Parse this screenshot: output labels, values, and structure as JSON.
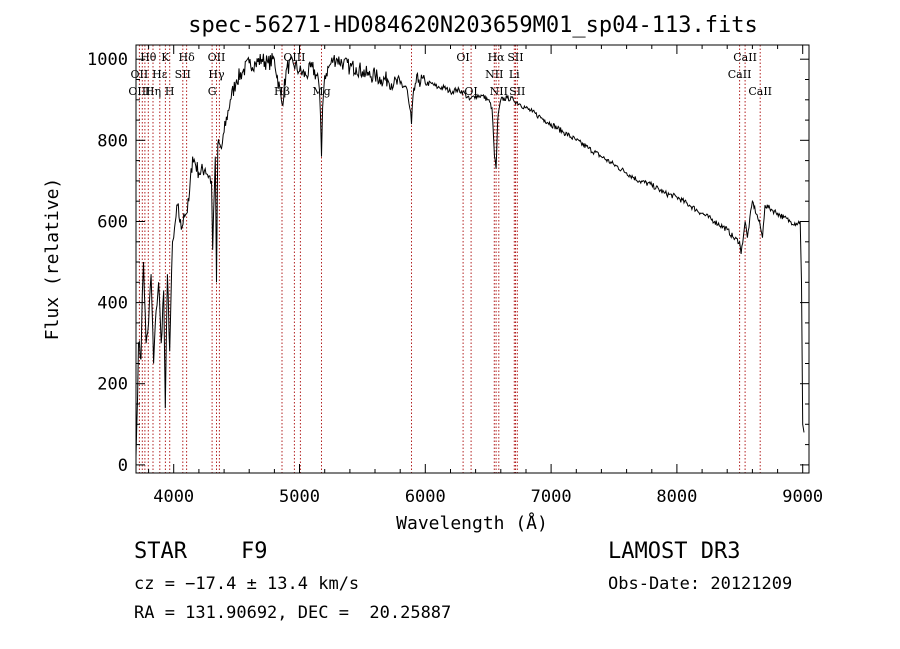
{
  "chart_data": {
    "type": "line",
    "title": "spec-56271-HD084620N203659M01_sp04-113.fits",
    "xlabel": "Wavelength (Å)",
    "ylabel": "Flux (relative)",
    "xlim": [
      3700,
      9050
    ],
    "ylim": [
      -20,
      1035
    ],
    "xticks": [
      4000,
      5000,
      6000,
      7000,
      8000,
      9000
    ],
    "yticks": [
      0,
      200,
      400,
      600,
      800,
      1000
    ],
    "series": [
      {
        "name": "spectrum",
        "x": [
          3700,
          3705,
          3720,
          3740,
          3750,
          3760,
          3780,
          3800,
          3820,
          3840,
          3860,
          3880,
          3900,
          3920,
          3933,
          3950,
          3968,
          3990,
          4000,
          4030,
          4060,
          4080,
          4102,
          4120,
          4150,
          4200,
          4250,
          4300,
          4310,
          4330,
          4340,
          4350,
          4380,
          4400,
          4450,
          4500,
          4550,
          4600,
          4650,
          4700,
          4750,
          4800,
          4861,
          4900,
          4950,
          5000,
          5050,
          5100,
          5150,
          5167,
          5175,
          5183,
          5200,
          5250,
          5270,
          5300,
          5350,
          5400,
          5450,
          5500,
          5550,
          5600,
          5650,
          5700,
          5750,
          5800,
          5850,
          5890,
          5896,
          5920,
          5950,
          6000,
          6050,
          6100,
          6150,
          6200,
          6250,
          6300,
          6350,
          6400,
          6450,
          6500,
          6530,
          6550,
          6563,
          6575,
          6600,
          6650,
          6700,
          6750,
          6800,
          6850,
          6900,
          6950,
          7000,
          7100,
          7200,
          7300,
          7400,
          7500,
          7600,
          7700,
          7800,
          7900,
          8000,
          8100,
          8200,
          8300,
          8400,
          8450,
          8498,
          8510,
          8542,
          8560,
          8600,
          8662,
          8680,
          8700,
          8750,
          8800,
          8850,
          8900,
          8950,
          8980,
          8990,
          9000,
          9010
        ],
        "y": [
          20,
          80,
          300,
          260,
          420,
          500,
          300,
          350,
          470,
          250,
          380,
          450,
          300,
          430,
          140,
          470,
          280,
          550,
          560,
          640,
          580,
          620,
          620,
          650,
          760,
          720,
          730,
          700,
          530,
          760,
          450,
          790,
          780,
          820,
          900,
          950,
          970,
          990,
          990,
          1000,
          990,
          1000,
          890,
          980,
          990,
          970,
          960,
          980,
          950,
          860,
          760,
          880,
          960,
          990,
          1000,
          1000,
          990,
          980,
          980,
          970,
          960,
          960,
          950,
          950,
          940,
          940,
          930,
          840,
          880,
          940,
          950,
          940,
          940,
          930,
          930,
          920,
          925,
          920,
          900,
          910,
          910,
          900,
          880,
          760,
          730,
          850,
          900,
          905,
          900,
          890,
          880,
          870,
          860,
          850,
          840,
          820,
          800,
          780,
          760,
          740,
          720,
          700,
          690,
          670,
          660,
          640,
          620,
          600,
          580,
          560,
          550,
          520,
          600,
          560,
          650,
          590,
          560,
          640,
          630,
          620,
          610,
          600,
          595,
          600,
          450,
          100,
          80
        ]
      }
    ],
    "line_annotations": [
      {
        "label": "Hθ",
        "row": 0,
        "x": 3798
      },
      {
        "label": "K",
        "row": 0,
        "x": 3934
      },
      {
        "label": "Hδ",
        "row": 0,
        "x": 4102
      },
      {
        "label": "OII",
        "row": 0,
        "x": 4340
      },
      {
        "label": "OIII",
        "row": 0,
        "x": 4959
      },
      {
        "label": "OI",
        "row": 0,
        "x": 6300
      },
      {
        "label": "Hα",
        "row": 0,
        "x": 6563
      },
      {
        "label": "SII",
        "row": 0,
        "x": 6717
      },
      {
        "label": "CaII",
        "row": 0,
        "x": 8542
      },
      {
        "label": "OII",
        "row": 1,
        "x": 3727
      },
      {
        "label": "Hε",
        "row": 1,
        "x": 3889
      },
      {
        "label": "SII",
        "row": 1,
        "x": 4072
      },
      {
        "label": "Hγ",
        "row": 1,
        "x": 4340
      },
      {
        "label": "NII",
        "row": 1,
        "x": 6548
      },
      {
        "label": "Li",
        "row": 1,
        "x": 6707
      },
      {
        "label": "CaII",
        "row": 1,
        "x": 8498
      },
      {
        "label": "OIII",
        "row": 2,
        "x": 3727
      },
      {
        "label": "Hη",
        "row": 2,
        "x": 3835
      },
      {
        "label": "H",
        "row": 2,
        "x": 3968
      },
      {
        "label": "G",
        "row": 2,
        "x": 4305
      },
      {
        "label": "Hβ",
        "row": 2,
        "x": 4861
      },
      {
        "label": "Mg",
        "row": 2,
        "x": 5175
      },
      {
        "label": "OI",
        "row": 2,
        "x": 6364
      },
      {
        "label": "NII",
        "row": 2,
        "x": 6584
      },
      {
        "label": "SII",
        "row": 2,
        "x": 6731
      },
      {
        "label": "CaII",
        "row": 2,
        "x": 8662
      }
    ],
    "marker_lines_x": [
      3727,
      3750,
      3771,
      3798,
      3835,
      3889,
      3934,
      3968,
      4072,
      4102,
      4305,
      4340,
      4363,
      4861,
      4959,
      5007,
      5175,
      5890,
      6300,
      6364,
      6548,
      6563,
      6584,
      6707,
      6717,
      6731,
      8498,
      8542,
      8662
    ]
  },
  "info": {
    "object_class": "STAR",
    "subclass": "F9",
    "survey": "LAMOST DR3",
    "redshift_line": "cz = −17.4 ± 13.4 km/s",
    "obs_date_line": "Obs-Date: 20121209",
    "coords_line": "RA = 131.90692, DEC =  20.25887"
  }
}
